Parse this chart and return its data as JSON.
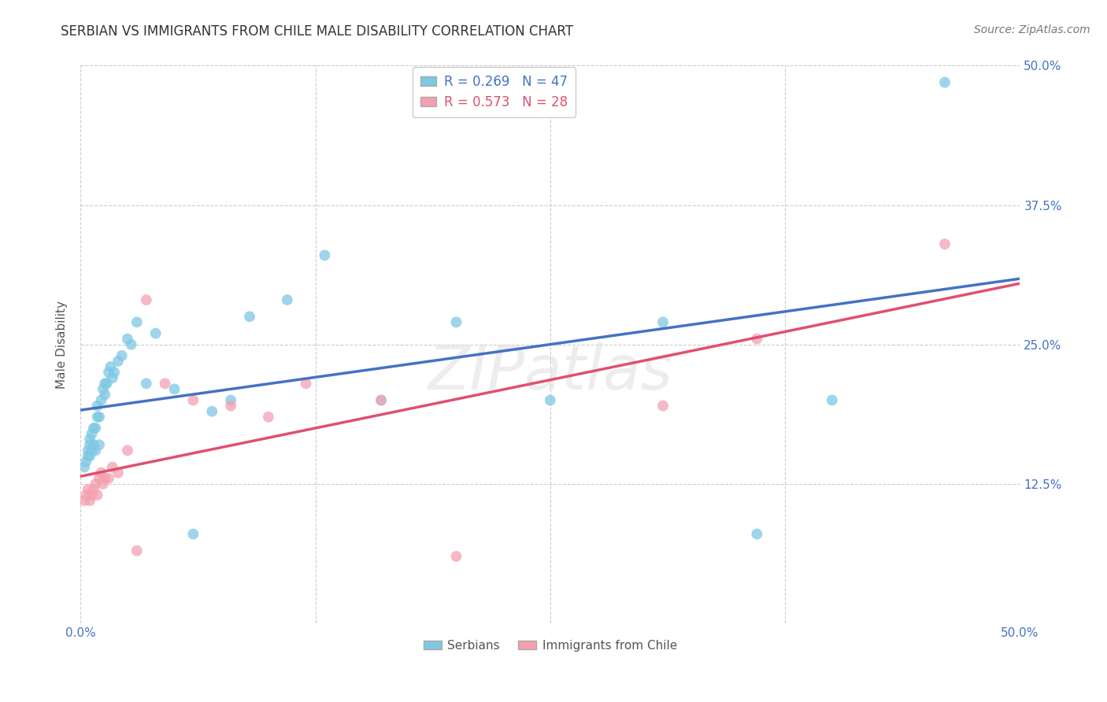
{
  "title": "SERBIAN VS IMMIGRANTS FROM CHILE MALE DISABILITY CORRELATION CHART",
  "source": "Source: ZipAtlas.com",
  "ylabel": "Male Disability",
  "xlim": [
    0.0,
    0.5
  ],
  "ylim": [
    0.0,
    0.5
  ],
  "xticks": [
    0.0,
    0.125,
    0.25,
    0.375,
    0.5
  ],
  "yticks": [
    0.125,
    0.25,
    0.375,
    0.5
  ],
  "xticklabels": [
    "0.0%",
    "",
    "",
    "",
    "50.0%"
  ],
  "yticklabels_right": [
    "12.5%",
    "25.0%",
    "37.5%",
    "50.0%"
  ],
  "serbian_x": [
    0.002,
    0.003,
    0.004,
    0.004,
    0.005,
    0.005,
    0.005,
    0.006,
    0.006,
    0.007,
    0.007,
    0.008,
    0.008,
    0.009,
    0.009,
    0.01,
    0.01,
    0.011,
    0.012,
    0.013,
    0.013,
    0.014,
    0.015,
    0.016,
    0.017,
    0.018,
    0.02,
    0.022,
    0.025,
    0.027,
    0.03,
    0.035,
    0.04,
    0.05,
    0.06,
    0.07,
    0.08,
    0.09,
    0.11,
    0.13,
    0.16,
    0.2,
    0.25,
    0.31,
    0.36,
    0.4,
    0.46
  ],
  "serbian_y": [
    0.14,
    0.145,
    0.15,
    0.155,
    0.15,
    0.16,
    0.165,
    0.155,
    0.17,
    0.16,
    0.175,
    0.155,
    0.175,
    0.185,
    0.195,
    0.16,
    0.185,
    0.2,
    0.21,
    0.205,
    0.215,
    0.215,
    0.225,
    0.23,
    0.22,
    0.225,
    0.235,
    0.24,
    0.255,
    0.25,
    0.27,
    0.215,
    0.26,
    0.21,
    0.08,
    0.19,
    0.2,
    0.275,
    0.29,
    0.33,
    0.2,
    0.27,
    0.2,
    0.27,
    0.08,
    0.2,
    0.485
  ],
  "chile_x": [
    0.002,
    0.003,
    0.004,
    0.005,
    0.006,
    0.007,
    0.008,
    0.009,
    0.01,
    0.011,
    0.012,
    0.013,
    0.015,
    0.017,
    0.02,
    0.025,
    0.03,
    0.035,
    0.045,
    0.06,
    0.08,
    0.1,
    0.12,
    0.16,
    0.2,
    0.31,
    0.36,
    0.46
  ],
  "chile_y": [
    0.11,
    0.115,
    0.12,
    0.11,
    0.115,
    0.12,
    0.125,
    0.115,
    0.13,
    0.135,
    0.125,
    0.13,
    0.13,
    0.14,
    0.135,
    0.155,
    0.065,
    0.29,
    0.215,
    0.2,
    0.195,
    0.185,
    0.215,
    0.2,
    0.06,
    0.195,
    0.255,
    0.34
  ],
  "serbian_R": 0.269,
  "serbian_N": 47,
  "chile_R": 0.573,
  "chile_N": 28,
  "serbian_color": "#7ec8e3",
  "chile_color": "#f4a0b0",
  "serbian_line_color": "#4472c4",
  "chile_line_color": "#e05070",
  "bg_color": "#ffffff",
  "grid_color": "#cccccc",
  "title_fontsize": 12,
  "label_fontsize": 11,
  "tick_fontsize": 11,
  "legend_fontsize": 12,
  "watermark": "ZIPatlas"
}
